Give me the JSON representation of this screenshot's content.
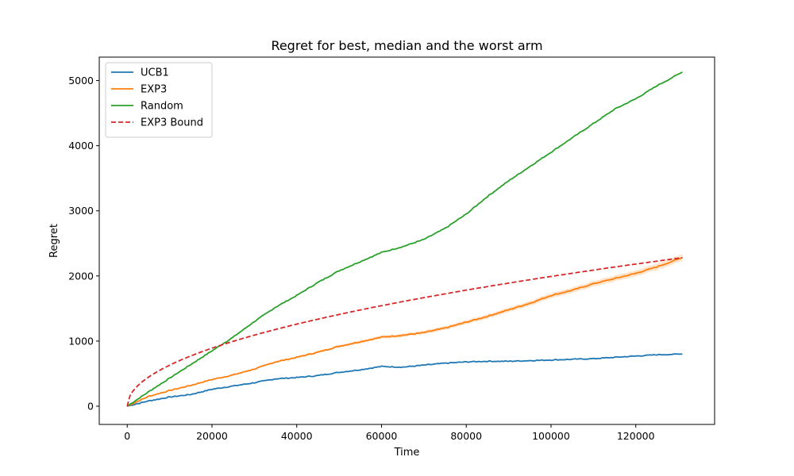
{
  "chart_data": {
    "type": "line",
    "title": "Regret for best, median and the worst arm",
    "xlabel": "Time",
    "ylabel": "Regret",
    "xlim": [
      -6600,
      138600
    ],
    "ylim": [
      -280,
      5360
    ],
    "xticks": [
      0,
      20000,
      40000,
      60000,
      80000,
      100000,
      120000
    ],
    "yticks": [
      0,
      1000,
      2000,
      3000,
      4000,
      5000
    ],
    "grid": false,
    "legend_position": "top-left",
    "series": [
      {
        "name": "UCB1",
        "color": "#1f77b4",
        "style": "solid",
        "x": [
          0,
          5000,
          10000,
          15000,
          20000,
          25000,
          30000,
          35000,
          40000,
          45000,
          50000,
          55000,
          60000,
          65000,
          70000,
          75000,
          80000,
          85000,
          90000,
          95000,
          100000,
          105000,
          110000,
          115000,
          120000,
          125000,
          131000
        ],
        "y": [
          0,
          80,
          140,
          180,
          260,
          310,
          360,
          420,
          440,
          470,
          520,
          560,
          610,
          600,
          630,
          660,
          680,
          690,
          690,
          700,
          710,
          720,
          730,
          750,
          770,
          790,
          800
        ]
      },
      {
        "name": "EXP3",
        "color": "#ff7f0e",
        "style": "solid",
        "band": 50,
        "x": [
          0,
          5000,
          10000,
          15000,
          20000,
          25000,
          30000,
          35000,
          40000,
          45000,
          50000,
          55000,
          60000,
          65000,
          70000,
          75000,
          80000,
          85000,
          90000,
          95000,
          100000,
          105000,
          110000,
          115000,
          120000,
          125000,
          131000
        ],
        "y": [
          0,
          150,
          240,
          320,
          410,
          480,
          570,
          680,
          750,
          830,
          920,
          990,
          1060,
          1090,
          1130,
          1200,
          1290,
          1380,
          1480,
          1580,
          1700,
          1780,
          1880,
          1960,
          2040,
          2140,
          2280
        ]
      },
      {
        "name": "Random",
        "color": "#2ca02c",
        "style": "solid",
        "x": [
          0,
          5000,
          10000,
          15000,
          20000,
          25000,
          30000,
          35000,
          40000,
          45000,
          50000,
          55000,
          60000,
          65000,
          70000,
          75000,
          80000,
          85000,
          90000,
          95000,
          100000,
          105000,
          110000,
          115000,
          120000,
          125000,
          131000
        ],
        "y": [
          0,
          220,
          430,
          640,
          850,
          1060,
          1300,
          1520,
          1700,
          1900,
          2080,
          2220,
          2360,
          2450,
          2560,
          2730,
          2950,
          3220,
          3460,
          3680,
          3900,
          4120,
          4340,
          4560,
          4720,
          4920,
          5130
        ]
      },
      {
        "name": "EXP3 Bound",
        "color": "#d62728",
        "style": "dashed",
        "formula": "6.3 * sqrt(x)",
        "x_range": [
          0,
          131000
        ]
      }
    ]
  }
}
